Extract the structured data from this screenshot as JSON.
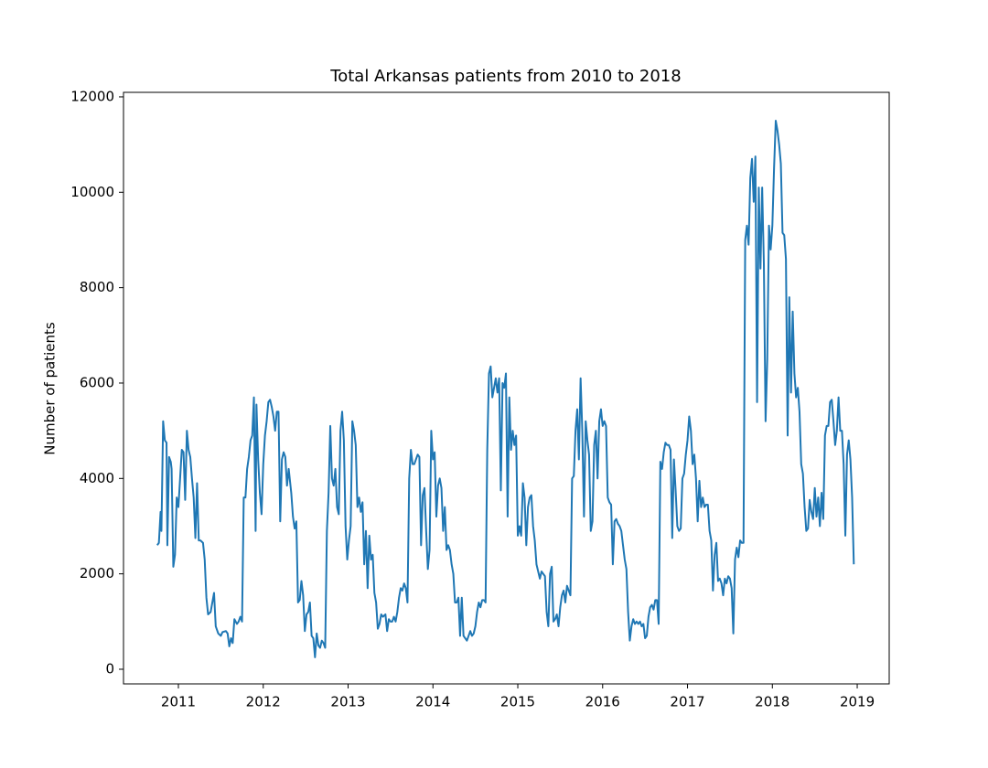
{
  "chart_data": {
    "type": "line",
    "title": "Total Arkansas patients from 2010 to 2018",
    "ylabel": "Number of patients",
    "color": "#1f77b4",
    "x": [
      2010.75,
      2010.77,
      2010.79,
      2010.8,
      2010.82,
      2010.84,
      2010.86,
      2010.87,
      2010.89,
      2010.91,
      2010.92,
      2010.94,
      2010.96,
      2010.98,
      2011.0,
      2011.02,
      2011.04,
      2011.06,
      2011.08,
      2011.1,
      2011.12,
      2011.14,
      2011.16,
      2011.18,
      2011.2,
      2011.22,
      2011.24,
      2011.26,
      2011.29,
      2011.31,
      2011.33,
      2011.35,
      2011.38,
      2011.4,
      2011.42,
      2011.44,
      2011.47,
      2011.5,
      2011.52,
      2011.56,
      2011.58,
      2011.6,
      2011.62,
      2011.64,
      2011.66,
      2011.69,
      2011.71,
      2011.73,
      2011.75,
      2011.77,
      2011.79,
      2011.81,
      2011.83,
      2011.85,
      2011.87,
      2011.89,
      2011.91,
      2011.92,
      2011.94,
      2011.96,
      2011.98,
      2012.0,
      2012.02,
      2012.04,
      2012.06,
      2012.08,
      2012.1,
      2012.12,
      2012.14,
      2012.16,
      2012.18,
      2012.2,
      2012.22,
      2012.24,
      2012.26,
      2012.28,
      2012.3,
      2012.33,
      2012.35,
      2012.37,
      2012.39,
      2012.41,
      2012.43,
      2012.45,
      2012.47,
      2012.49,
      2012.51,
      2012.53,
      2012.55,
      2012.57,
      2012.59,
      2012.61,
      2012.63,
      2012.65,
      2012.67,
      2012.69,
      2012.71,
      2012.73,
      2012.75,
      2012.77,
      2012.79,
      2012.81,
      2012.83,
      2012.85,
      2012.87,
      2012.89,
      2012.91,
      2012.93,
      2012.95,
      2012.97,
      2012.99,
      2013.01,
      2013.03,
      2013.05,
      2013.07,
      2013.09,
      2013.11,
      2013.13,
      2013.15,
      2013.17,
      2013.19,
      2013.21,
      2013.23,
      2013.25,
      2013.27,
      2013.29,
      2013.31,
      2013.33,
      2013.35,
      2013.37,
      2013.39,
      2013.41,
      2013.44,
      2013.46,
      2013.48,
      2013.5,
      2013.52,
      2013.54,
      2013.56,
      2013.58,
      2013.6,
      2013.62,
      2013.64,
      2013.66,
      2013.68,
      2013.7,
      2013.72,
      2013.74,
      2013.76,
      2013.78,
      2013.8,
      2013.82,
      2013.84,
      2013.86,
      2013.88,
      2013.9,
      2013.92,
      2013.94,
      2013.96,
      2013.98,
      2014.0,
      2014.02,
      2014.04,
      2014.06,
      2014.08,
      2014.1,
      2014.12,
      2014.14,
      2014.16,
      2014.18,
      2014.2,
      2014.22,
      2014.24,
      2014.26,
      2014.28,
      2014.3,
      2014.32,
      2014.34,
      2014.36,
      2014.38,
      2014.4,
      2014.42,
      2014.44,
      2014.46,
      2014.48,
      2014.5,
      2014.52,
      2014.54,
      2014.56,
      2014.58,
      2014.6,
      2014.62,
      2014.64,
      2014.66,
      2014.68,
      2014.7,
      2014.72,
      2014.74,
      2014.76,
      2014.78,
      2014.8,
      2014.82,
      2014.84,
      2014.86,
      2014.88,
      2014.9,
      2014.92,
      2014.94,
      2014.96,
      2014.98,
      2015.0,
      2015.02,
      2015.04,
      2015.06,
      2015.08,
      2015.1,
      2015.12,
      2015.14,
      2015.16,
      2015.18,
      2015.2,
      2015.22,
      2015.24,
      2015.26,
      2015.28,
      2015.3,
      2015.32,
      2015.34,
      2015.36,
      2015.38,
      2015.4,
      2015.42,
      2015.44,
      2015.46,
      2015.48,
      2015.5,
      2015.52,
      2015.54,
      2015.56,
      2015.58,
      2015.6,
      2015.62,
      2015.64,
      2015.66,
      2015.68,
      2015.7,
      2015.72,
      2015.74,
      2015.76,
      2015.78,
      2015.8,
      2015.82,
      2015.84,
      2015.86,
      2015.88,
      2015.9,
      2015.92,
      2015.94,
      2015.96,
      2015.98,
      2016.0,
      2016.02,
      2016.04,
      2016.06,
      2016.08,
      2016.1,
      2016.12,
      2016.14,
      2016.16,
      2016.18,
      2016.2,
      2016.22,
      2016.24,
      2016.26,
      2016.28,
      2016.3,
      2016.32,
      2016.34,
      2016.36,
      2016.38,
      2016.4,
      2016.42,
      2016.44,
      2016.46,
      2016.48,
      2016.5,
      2016.52,
      2016.54,
      2016.56,
      2016.58,
      2016.6,
      2016.62,
      2016.64,
      2016.66,
      2016.68,
      2016.7,
      2016.72,
      2016.74,
      2016.76,
      2016.78,
      2016.8,
      2016.82,
      2016.84,
      2016.86,
      2016.88,
      2016.9,
      2016.92,
      2016.94,
      2016.96,
      2016.98,
      2017.0,
      2017.02,
      2017.04,
      2017.06,
      2017.08,
      2017.1,
      2017.12,
      2017.14,
      2017.16,
      2017.18,
      2017.2,
      2017.22,
      2017.24,
      2017.26,
      2017.28,
      2017.3,
      2017.32,
      2017.34,
      2017.36,
      2017.38,
      2017.4,
      2017.42,
      2017.44,
      2017.46,
      2017.48,
      2017.5,
      2017.52,
      2017.54,
      2017.56,
      2017.58,
      2017.6,
      2017.62,
      2017.64,
      2017.66,
      2017.68,
      2017.7,
      2017.72,
      2017.74,
      2017.76,
      2017.78,
      2017.8,
      2017.82,
      2017.84,
      2017.86,
      2017.88,
      2017.9,
      2017.92,
      2017.94,
      2017.96,
      2017.98,
      2018.0,
      2018.02,
      2018.04,
      2018.06,
      2018.08,
      2018.1,
      2018.12,
      2018.14,
      2018.16,
      2018.18,
      2018.2,
      2018.22,
      2018.24,
      2018.26,
      2018.28,
      2018.3,
      2018.32,
      2018.34,
      2018.36,
      2018.38,
      2018.4,
      2018.42,
      2018.44,
      2018.46,
      2018.48,
      2018.5,
      2018.52,
      2018.54,
      2018.56,
      2018.58,
      2018.6,
      2018.62,
      2018.64,
      2018.66,
      2018.68,
      2018.7,
      2018.72,
      2018.74,
      2018.76,
      2018.78,
      2018.8,
      2018.82,
      2018.84,
      2018.86,
      2018.88,
      2018.9,
      2018.92,
      2018.94,
      2018.96
    ],
    "values": [
      2600,
      2650,
      3300,
      2900,
      5200,
      4800,
      4750,
      2600,
      4450,
      4350,
      4200,
      2150,
      2400,
      3600,
      3400,
      4000,
      4600,
      4550,
      3550,
      5000,
      4600,
      4450,
      4000,
      3600,
      2750,
      3900,
      2700,
      2700,
      2650,
      2300,
      1500,
      1150,
      1200,
      1400,
      1600,
      900,
      750,
      700,
      780,
      800,
      750,
      480,
      650,
      550,
      1050,
      950,
      1000,
      1100,
      1000,
      3600,
      3600,
      4200,
      4450,
      4800,
      4900,
      5700,
      2900,
      5550,
      4400,
      3700,
      3250,
      4300,
      4900,
      5200,
      5600,
      5650,
      5500,
      5300,
      5000,
      5400,
      5400,
      3100,
      4400,
      4550,
      4450,
      3850,
      4200,
      3700,
      3200,
      2950,
      3100,
      1400,
      1450,
      1850,
      1550,
      800,
      1150,
      1200,
      1400,
      700,
      650,
      250,
      750,
      500,
      450,
      600,
      550,
      450,
      2900,
      3700,
      5100,
      4000,
      3850,
      4200,
      3400,
      3250,
      5000,
      5400,
      4800,
      3000,
      2300,
      2700,
      3000,
      5200,
      5000,
      4700,
      3400,
      3600,
      3300,
      3500,
      2200,
      2900,
      1700,
      2800,
      2300,
      2400,
      1600,
      1400,
      850,
      950,
      1150,
      1100,
      1150,
      800,
      1050,
      1000,
      1000,
      1100,
      1000,
      1200,
      1500,
      1700,
      1650,
      1800,
      1700,
      1400,
      4000,
      4600,
      4300,
      4300,
      4400,
      4500,
      4450,
      2600,
      3650,
      3800,
      2900,
      2100,
      2500,
      5000,
      4400,
      4550,
      3200,
      3850,
      4000,
      3800,
      2900,
      3400,
      2500,
      2600,
      2500,
      2200,
      2000,
      1400,
      1400,
      1500,
      700,
      1500,
      700,
      650,
      600,
      700,
      800,
      700,
      750,
      900,
      1200,
      1400,
      1300,
      1450,
      1450,
      1400,
      4600,
      6200,
      6350,
      5700,
      5900,
      6100,
      5800,
      6100,
      3750,
      6000,
      5900,
      6200,
      3200,
      5700,
      4600,
      5000,
      4700,
      4900,
      2800,
      3000,
      2800,
      3900,
      3600,
      2600,
      3400,
      3600,
      3650,
      3000,
      2700,
      2200,
      2050,
      1900,
      2050,
      2000,
      1950,
      1200,
      900,
      2000,
      2150,
      1000,
      1050,
      1150,
      900,
      1300,
      1550,
      1650,
      1400,
      1750,
      1650,
      1550,
      4000,
      4050,
      5000,
      5450,
      4400,
      6100,
      5000,
      3200,
      5200,
      4800,
      4500,
      2900,
      3100,
      4700,
      5000,
      4000,
      5200,
      5450,
      5100,
      5200,
      5100,
      3600,
      3500,
      3450,
      2200,
      3100,
      3150,
      3050,
      3000,
      2900,
      2600,
      2300,
      2100,
      1200,
      600,
      900,
      1050,
      950,
      1000,
      950,
      1000,
      900,
      950,
      650,
      700,
      1100,
      1300,
      1350,
      1250,
      1450,
      1450,
      950,
      4350,
      4200,
      4550,
      4750,
      4700,
      4700,
      4600,
      2750,
      4400,
      3750,
      3000,
      2900,
      2950,
      4000,
      4100,
      4500,
      4800,
      5300,
      5000,
      4300,
      4500,
      4000,
      3100,
      3950,
      3400,
      3600,
      3400,
      3450,
      3450,
      2900,
      2700,
      1650,
      2400,
      2650,
      1850,
      1900,
      1800,
      1550,
      1900,
      1800,
      1950,
      1900,
      1700,
      750,
      2300,
      2550,
      2350,
      2700,
      2650,
      2650,
      9000,
      9300,
      8900,
      10300,
      10700,
      9800,
      10750,
      5600,
      10100,
      8400,
      10100,
      8500,
      5200,
      6500,
      9300,
      8800,
      9300,
      10500,
      11500,
      11300,
      11000,
      10600,
      9150,
      9100,
      8600,
      4900,
      7800,
      5800,
      7500,
      6200,
      5700,
      5900,
      5400,
      4300,
      4100,
      3400,
      2900,
      2950,
      3550,
      3300,
      3150,
      3800,
      3200,
      3600,
      3000,
      3700,
      3150,
      4900,
      5100,
      5100,
      5600,
      5650,
      5200,
      4700,
      5000,
      5700,
      5000,
      5000,
      4300,
      2800,
      4500,
      4800,
      4400,
      3600,
      2200
    ],
    "xlim": [
      2010.353,
      2019.377
    ],
    "xticks": [
      2011,
      2012,
      2013,
      2014,
      2015,
      2016,
      2017,
      2018,
      2019
    ],
    "ylim": [
      -307,
      12095
    ],
    "yticks": [
      0,
      2000,
      4000,
      6000,
      8000,
      10000,
      12000
    ],
    "grid": false
  }
}
